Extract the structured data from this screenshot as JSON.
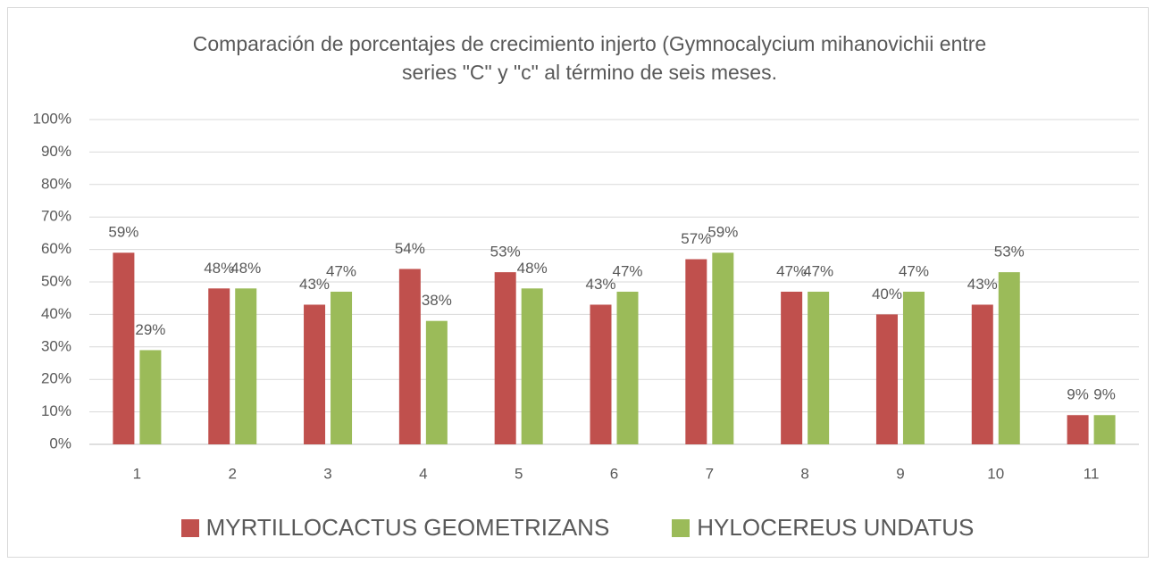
{
  "chart_data": {
    "type": "bar",
    "title": "Comparación de porcentajes de crecimiento injerto (Gymnocalycium mihanovichii entre series \"C\" y \"c\" al término de seis meses.",
    "categories": [
      "1",
      "2",
      "3",
      "4",
      "5",
      "6",
      "7",
      "8",
      "9",
      "10",
      "11"
    ],
    "series": [
      {
        "name": "MYRTILLOCACTUS GEOMETRIZANS",
        "color": "#c0504d",
        "values": [
          59,
          48,
          43,
          54,
          53,
          43,
          57,
          47,
          40,
          43,
          9
        ],
        "value_labels": [
          "59%",
          "48%",
          "43%",
          "54%",
          "53%",
          "43%",
          "57%",
          "47%",
          "40%",
          "43%",
          "9%"
        ]
      },
      {
        "name": "HYLOCEREUS UNDATUS",
        "color": "#9bbb59",
        "values": [
          29,
          48,
          47,
          38,
          48,
          47,
          59,
          47,
          47,
          53,
          9
        ],
        "value_labels": [
          "29%",
          "48%",
          "47%",
          "38%",
          "48%",
          "47%",
          "59%",
          "47%",
          "47%",
          "53%",
          "9%"
        ]
      }
    ],
    "ylim": [
      0,
      100
    ],
    "yticks": [
      {
        "value": 0,
        "label": "0%"
      },
      {
        "value": 10,
        "label": "10%"
      },
      {
        "value": 20,
        "label": "20%"
      },
      {
        "value": 30,
        "label": "30%"
      },
      {
        "value": 40,
        "label": "40%"
      },
      {
        "value": 50,
        "label": "50%"
      },
      {
        "value": 60,
        "label": "60%"
      },
      {
        "value": 70,
        "label": "70%"
      },
      {
        "value": 80,
        "label": "80%"
      },
      {
        "value": 90,
        "label": "90%"
      },
      {
        "value": 100,
        "label": "100%"
      }
    ],
    "grid": true,
    "legend": "bottom"
  }
}
